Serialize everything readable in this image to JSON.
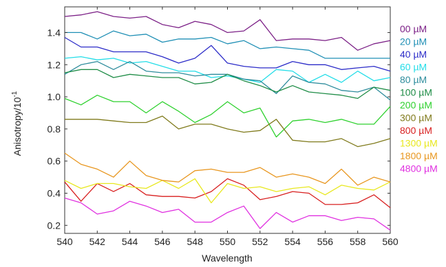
{
  "chart_data": {
    "type": "line",
    "xlabel": "Wavelength",
    "ylabel": "Anisotropy/10",
    "ylabel_superscript": "-1",
    "xlim": [
      540,
      560
    ],
    "ylim": [
      0.15,
      1.56
    ],
    "xticks": [
      "540",
      "542",
      "544",
      "546",
      "548",
      "550",
      "552",
      "554",
      "556",
      "558",
      "560"
    ],
    "yticks": [
      "0.2",
      "0.4",
      "0.6",
      "0.8",
      "1.0",
      "1.2",
      "1.4"
    ],
    "x": [
      540,
      541,
      542,
      543,
      544,
      545,
      546,
      547,
      548,
      549,
      550,
      551,
      552,
      553,
      554,
      555,
      556,
      557,
      558,
      559,
      560
    ],
    "legend_position": "right",
    "series": [
      {
        "name": "00 µM",
        "color": "#7b1f86",
        "values": [
          1.5,
          1.51,
          1.53,
          1.5,
          1.49,
          1.5,
          1.45,
          1.43,
          1.47,
          1.45,
          1.4,
          1.41,
          1.48,
          1.35,
          1.36,
          1.36,
          1.35,
          1.37,
          1.29,
          1.33,
          1.35
        ]
      },
      {
        "name": "20 µM",
        "color": "#1f8fb5",
        "values": [
          1.4,
          1.4,
          1.36,
          1.41,
          1.38,
          1.39,
          1.34,
          1.36,
          1.36,
          1.37,
          1.33,
          1.35,
          1.3,
          1.31,
          1.3,
          1.29,
          1.24,
          1.24,
          1.24,
          1.24,
          1.24
        ]
      },
      {
        "name": "40 µM",
        "color": "#2b2bc8",
        "values": [
          1.37,
          1.31,
          1.31,
          1.28,
          1.28,
          1.28,
          1.25,
          1.21,
          1.24,
          1.32,
          1.21,
          1.19,
          1.18,
          1.18,
          1.22,
          1.2,
          1.2,
          1.17,
          1.18,
          1.19,
          1.16
        ]
      },
      {
        "name": "60 µM",
        "color": "#22dde8",
        "values": [
          1.24,
          1.25,
          1.23,
          1.24,
          1.21,
          1.22,
          1.19,
          1.16,
          1.16,
          1.12,
          1.13,
          1.11,
          1.09,
          1.17,
          1.16,
          1.09,
          1.14,
          1.09,
          1.16,
          1.1,
          1.12
        ]
      },
      {
        "name": "80 µM",
        "color": "#2d8c9c",
        "values": [
          1.14,
          1.2,
          1.22,
          1.17,
          1.22,
          1.16,
          1.15,
          1.15,
          1.13,
          1.14,
          1.14,
          1.11,
          1.1,
          1.02,
          1.13,
          1.09,
          1.08,
          1.04,
          1.03,
          1.06,
          0.98
        ]
      },
      {
        "name": "100 µM",
        "color": "#1e8c46",
        "values": [
          1.15,
          1.17,
          1.17,
          1.12,
          1.14,
          1.13,
          1.12,
          1.12,
          1.08,
          1.09,
          1.14,
          1.1,
          1.07,
          1.03,
          1.07,
          1.03,
          1.02,
          1.01,
          0.99,
          1.06,
          1.04
        ]
      },
      {
        "name": "200 µM",
        "color": "#2ed12e",
        "values": [
          0.99,
          0.95,
          1.01,
          0.97,
          0.97,
          0.9,
          0.97,
          0.91,
          0.84,
          0.89,
          0.97,
          0.9,
          0.93,
          0.75,
          0.85,
          0.86,
          0.84,
          0.86,
          0.83,
          0.83,
          0.94
        ]
      },
      {
        "name": "300 µM",
        "color": "#7f7a1b",
        "values": [
          0.86,
          0.86,
          0.86,
          0.85,
          0.84,
          0.84,
          0.88,
          0.8,
          0.83,
          0.83,
          0.8,
          0.78,
          0.79,
          0.86,
          0.73,
          0.72,
          0.72,
          0.74,
          0.69,
          0.71,
          0.74
        ]
      },
      {
        "name": "800 µM",
        "color": "#d81e1e",
        "values": [
          0.47,
          0.35,
          0.46,
          0.41,
          0.46,
          0.39,
          0.38,
          0.38,
          0.37,
          0.41,
          0.49,
          0.45,
          0.36,
          0.38,
          0.41,
          0.4,
          0.33,
          0.33,
          0.34,
          0.39,
          0.31
        ]
      },
      {
        "name": "1300 µM",
        "color": "#e8e81e",
        "values": [
          0.48,
          0.43,
          0.46,
          0.46,
          0.44,
          0.43,
          0.48,
          0.43,
          0.49,
          0.34,
          0.46,
          0.43,
          0.44,
          0.41,
          0.43,
          0.44,
          0.39,
          0.45,
          0.43,
          0.42,
          0.47
        ]
      },
      {
        "name": "1800 µM",
        "color": "#e8961e",
        "values": [
          0.65,
          0.58,
          0.55,
          0.5,
          0.6,
          0.51,
          0.48,
          0.47,
          0.54,
          0.55,
          0.53,
          0.53,
          0.56,
          0.5,
          0.52,
          0.5,
          0.46,
          0.55,
          0.45,
          0.5,
          0.47
        ]
      },
      {
        "name": "4800 µM",
        "color": "#e030e0",
        "values": [
          0.37,
          0.34,
          0.27,
          0.29,
          0.35,
          0.32,
          0.28,
          0.3,
          0.22,
          0.22,
          0.28,
          0.32,
          0.18,
          0.28,
          0.22,
          0.26,
          0.26,
          0.23,
          0.25,
          0.24,
          0.17
        ]
      }
    ]
  }
}
